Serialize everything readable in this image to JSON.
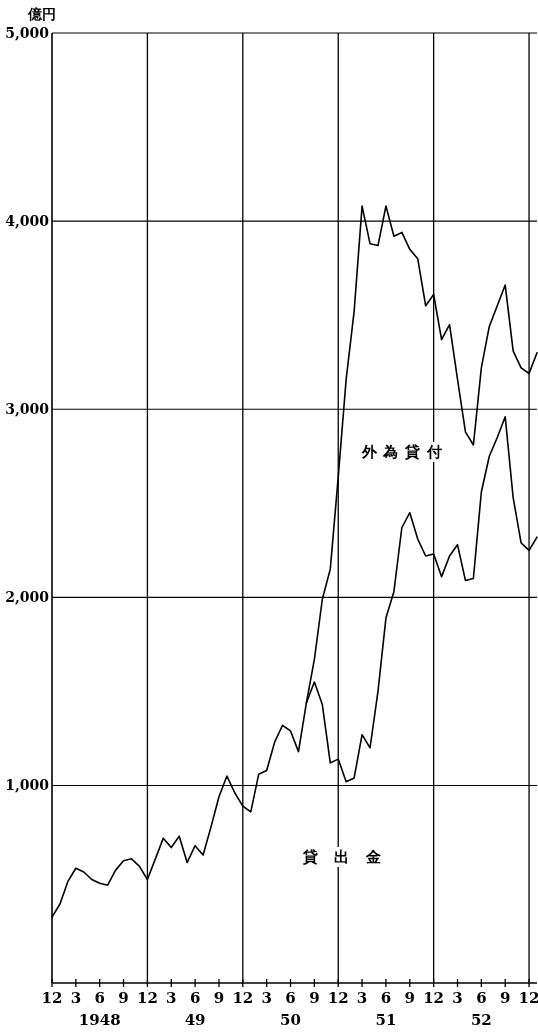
{
  "chart_data": {
    "type": "line",
    "ylabel": "億円",
    "line_style": "solid",
    "grid": "y",
    "xlim": [
      "1947-12",
      "1953-01"
    ],
    "ylim": [
      -50,
      5000
    ],
    "yticks": [
      {
        "value": 1000,
        "label": "1,000"
      },
      {
        "value": 2000,
        "label": "2,000"
      },
      {
        "value": 3000,
        "label": "3,000"
      },
      {
        "value": 4000,
        "label": "4,000"
      },
      {
        "value": 5000,
        "label": "5,000"
      }
    ],
    "xticks": [
      {
        "value": "1947-12",
        "label": "12"
      },
      {
        "value": "1948-03",
        "label": "3"
      },
      {
        "value": "1948-06",
        "label": "6\n1948"
      },
      {
        "value": "1948-09",
        "label": "9"
      },
      {
        "value": "1948-12",
        "label": "12"
      },
      {
        "value": "1949-03",
        "label": "3"
      },
      {
        "value": "1949-06",
        "label": "6\n49"
      },
      {
        "value": "1949-09",
        "label": "9"
      },
      {
        "value": "1949-12",
        "label": "12"
      },
      {
        "value": "1950-03",
        "label": "3"
      },
      {
        "value": "1950-06",
        "label": "6\n50"
      },
      {
        "value": "1950-09",
        "label": "9"
      },
      {
        "value": "1950-12",
        "label": "12"
      },
      {
        "value": "1951-03",
        "label": "3"
      },
      {
        "value": "1951-06",
        "label": "6\n51"
      },
      {
        "value": "1951-09",
        "label": "9"
      },
      {
        "value": "1951-12",
        "label": "12"
      },
      {
        "value": "1952-03",
        "label": "3"
      },
      {
        "value": "1952-06",
        "label": "6\n52"
      },
      {
        "value": "1952-09",
        "label": "9"
      },
      {
        "value": "1952-12",
        "label": "12"
      }
    ],
    "ref_lines": [
      {
        "axis": "x",
        "value": "1948-12"
      },
      {
        "axis": "x",
        "value": "1949-12"
      },
      {
        "axis": "x",
        "value": "1950-12"
      },
      {
        "axis": "x",
        "value": "1951-12"
      },
      {
        "axis": "x",
        "value": "1952-12"
      }
    ],
    "x": [
      "1947-12",
      "1948-01",
      "1948-02",
      "1948-03",
      "1948-04",
      "1948-05",
      "1948-06",
      "1948-07",
      "1948-08",
      "1948-09",
      "1948-10",
      "1948-11",
      "1948-12",
      "1949-01",
      "1949-02",
      "1949-03",
      "1949-04",
      "1949-05",
      "1949-06",
      "1949-07",
      "1949-08",
      "1949-09",
      "1949-10",
      "1949-11",
      "1949-12",
      "1950-01",
      "1950-02",
      "1950-03",
      "1950-04",
      "1950-05",
      "1950-06",
      "1950-07",
      "1950-08",
      "1950-09",
      "1950-10",
      "1950-11",
      "1950-12",
      "1951-01",
      "1951-02",
      "1951-03",
      "1951-04",
      "1951-05",
      "1951-06",
      "1951-07",
      "1951-08",
      "1951-09",
      "1951-10",
      "1951-11",
      "1951-12",
      "1952-01",
      "1952-02",
      "1952-03",
      "1952-04",
      "1952-05",
      "1952-06",
      "1952-07",
      "1952-08",
      "1952-09",
      "1952-10",
      "1952-11",
      "1952-12",
      "1953-01"
    ],
    "series": [
      {
        "color": "#000000",
        "values": [
          300,
          370,
          490,
          560,
          540,
          500,
          480,
          470,
          550,
          600,
          610,
          570,
          500,
          610,
          720,
          670,
          730,
          590,
          680,
          630,
          780,
          940,
          1050,
          960,
          890,
          860,
          1060,
          1080,
          1230,
          1320,
          1290,
          1180,
          1440,
          1550,
          1430,
          1120,
          1140,
          1020,
          1040,
          1270,
          1200,
          1500,
          1890,
          2030,
          2370,
          2450,
          2310,
          2220,
          2230,
          2110,
          2220,
          2280,
          2090,
          2100,
          2560,
          2750,
          2850,
          2960,
          2530,
          2290,
          2250,
          2320
        ]
      },
      {
        "color": "#000000",
        "values": [
          null,
          null,
          null,
          null,
          null,
          null,
          null,
          null,
          null,
          null,
          null,
          null,
          null,
          null,
          null,
          null,
          null,
          null,
          null,
          null,
          null,
          null,
          null,
          null,
          null,
          null,
          null,
          null,
          null,
          null,
          null,
          null,
          1440,
          1670,
          1990,
          2150,
          2640,
          3160,
          3520,
          4080,
          3880,
          3870,
          4080,
          3920,
          3940,
          3850,
          3800,
          3550,
          3610,
          3370,
          3450,
          3160,
          2880,
          2810,
          3220,
          3440,
          3550,
          3660,
          3310,
          3220,
          3190,
          3300
        ]
      }
    ],
    "annotations": [
      "外為貸付",
      "貸出金"
    ]
  }
}
